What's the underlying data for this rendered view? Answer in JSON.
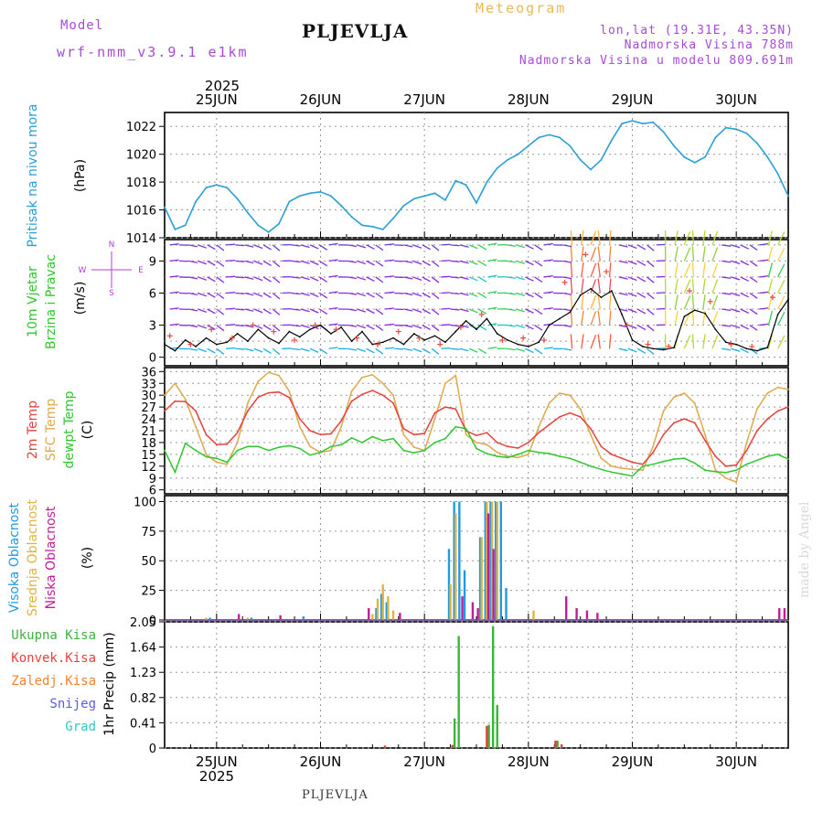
{
  "header": {
    "model_label": "Model",
    "model_name": "wrf-nmm_v3.9.1 e1km",
    "station": "PLJEVLJA",
    "product": "Meteogram",
    "coords": "lon,lat (19.31E, 43.35N)",
    "elevation": "Nadmorska Visina 788m",
    "elevation_model": "Nadmorska Visina u modelu 809.691m"
  },
  "footer": {
    "station": "PLJEVLJA",
    "credit": "made by Angel"
  },
  "colors": {
    "pressure": "#2a9fd6",
    "temp2m": "#e6423c",
    "sfc": "#e0a84a",
    "dew": "#2ec82e",
    "high_cloud": "#1e9be6",
    "mid_cloud": "#e0b43c",
    "low_cloud": "#c01e96",
    "total_precip": "#3cb43c",
    "conv_precip": "#e6423c",
    "frz_precip": "#f08232",
    "snow": "#5a5ae6",
    "grad": "#32c8c8",
    "wind_label": "#32c832",
    "wind_axis": "#b43cdc",
    "frame": "#000000",
    "grid": "#999999"
  },
  "chart_data": [
    {
      "type": "line",
      "panel": "pressure",
      "ylabel_left": "Pritisak na nivou mora",
      "ylabel_unit": "(hPa)",
      "x_unit": "days since 2025-06-24 00Z",
      "ylim": [
        1014,
        1023
      ],
      "yticks": [
        1014,
        1016,
        1018,
        1020,
        1022
      ],
      "top_axis": {
        "year": "2025",
        "labels": [
          "25JUN",
          "26JUN",
          "27JUN",
          "28JUN",
          "29JUN",
          "30JUN"
        ]
      },
      "series": [
        {
          "name": "Pritisak",
          "x": [
            0.5,
            0.6,
            0.7,
            0.8,
            0.9,
            1.0,
            1.1,
            1.2,
            1.3,
            1.4,
            1.5,
            1.6,
            1.7,
            1.8,
            1.9,
            2.0,
            2.1,
            2.2,
            2.3,
            2.4,
            2.5,
            2.6,
            2.7,
            2.8,
            2.9,
            3.0,
            3.1,
            3.2,
            3.3,
            3.4,
            3.5,
            3.6,
            3.7,
            3.8,
            3.9,
            4.0,
            4.1,
            4.2,
            4.3,
            4.4,
            4.5,
            4.6,
            4.7,
            4.8,
            4.9,
            5.0,
            5.1,
            5.2,
            5.3,
            5.4,
            5.5,
            5.6,
            5.7,
            5.8,
            5.9,
            6.0,
            6.1,
            6.2,
            6.3,
            6.4,
            6.5
          ],
          "values": [
            1016.2,
            1014.6,
            1014.9,
            1016.6,
            1017.6,
            1017.8,
            1017.6,
            1016.8,
            1015.8,
            1014.9,
            1014.4,
            1015.0,
            1016.6,
            1017.0,
            1017.2,
            1017.3,
            1017.0,
            1016.3,
            1015.5,
            1014.9,
            1014.8,
            1014.6,
            1015.4,
            1016.3,
            1016.8,
            1017.0,
            1017.2,
            1016.7,
            1018.1,
            1017.8,
            1016.5,
            1018.0,
            1019.0,
            1019.6,
            1020.0,
            1020.6,
            1021.2,
            1021.4,
            1021.2,
            1020.6,
            1019.6,
            1018.9,
            1019.6,
            1021.0,
            1022.2,
            1022.4,
            1022.2,
            1022.3,
            1021.6,
            1020.6,
            1019.8,
            1019.4,
            1019.8,
            1021.2,
            1021.9,
            1021.8,
            1021.5,
            1020.8,
            1019.8,
            1018.6,
            1017.0
          ]
        }
      ]
    },
    {
      "type": "line",
      "panel": "wind",
      "ylabel_left": [
        "10m Vjetar",
        "Brzina i Pravac"
      ],
      "ylabel_unit": "(m/s)",
      "compass": [
        "N",
        "S",
        "W",
        "E"
      ],
      "ylim": [
        -0.8,
        11
      ],
      "yticks": [
        0,
        3,
        6,
        9
      ],
      "grid_levels": [
        0,
        1.5,
        3,
        4.5,
        6,
        7.5,
        9,
        10.5
      ],
      "series": [
        {
          "name": "Brzina",
          "x": [
            0.5,
            0.6,
            0.7,
            0.8,
            0.9,
            1.0,
            1.1,
            1.2,
            1.3,
            1.4,
            1.5,
            1.6,
            1.7,
            1.8,
            1.9,
            2.0,
            2.1,
            2.2,
            2.3,
            2.4,
            2.5,
            2.6,
            2.7,
            2.8,
            2.9,
            3.0,
            3.1,
            3.2,
            3.3,
            3.4,
            3.5,
            3.6,
            3.7,
            3.8,
            3.9,
            4.0,
            4.1,
            4.2,
            4.3,
            4.4,
            4.5,
            4.6,
            4.7,
            4.8,
            4.9,
            5.0,
            5.1,
            5.2,
            5.3,
            5.4,
            5.5,
            5.6,
            5.7,
            5.8,
            5.9,
            6.0,
            6.1,
            6.2,
            6.3,
            6.4,
            6.5
          ],
          "values": [
            1.2,
            0.6,
            1.6,
            1.0,
            1.8,
            1.2,
            1.4,
            2.2,
            1.5,
            2.6,
            1.8,
            1.3,
            2.4,
            1.9,
            2.6,
            3.0,
            2.2,
            2.8,
            1.5,
            2.4,
            1.2,
            1.4,
            1.8,
            1.2,
            2.2,
            1.6,
            2.0,
            1.4,
            2.4,
            3.4,
            2.6,
            3.6,
            2.2,
            1.6,
            1.2,
            1.0,
            1.4,
            3.0,
            3.6,
            4.2,
            5.8,
            6.4,
            5.6,
            6.2,
            4.0,
            1.6,
            1.0,
            0.8,
            0.7,
            0.9,
            3.8,
            4.4,
            4.1,
            2.6,
            1.4,
            1.2,
            0.8,
            0.6,
            0.9,
            4.0,
            5.4
          ]
        },
        {
          "name": "Udari",
          "x": [
            0.55,
            0.75,
            0.95,
            1.15,
            1.35,
            1.55,
            1.75,
            1.95,
            2.15,
            2.35,
            2.55,
            2.75,
            2.95,
            3.15,
            3.35,
            3.55,
            3.75,
            3.95,
            4.15,
            4.35,
            4.55,
            4.75,
            4.95,
            5.15,
            5.35,
            5.55,
            5.75,
            5.95,
            6.15,
            6.35
          ],
          "values": [
            2.0,
            1.2,
            2.6,
            1.8,
            3.0,
            2.4,
            1.6,
            3.0,
            2.6,
            1.8,
            1.2,
            2.4,
            1.8,
            1.2,
            2.8,
            4.0,
            1.6,
            1.8,
            1.6,
            7.0,
            9.6,
            8.0,
            3.0,
            1.2,
            1.0,
            6.2,
            5.2,
            1.2,
            1.0,
            5.6
          ]
        }
      ]
    },
    {
      "type": "line",
      "panel": "temperature",
      "ylabel_left": [
        "2m Temp",
        "SFC Temp",
        "dewpt Temp"
      ],
      "ylabel_unit": "(C)",
      "ylim": [
        5,
        37
      ],
      "yticks": [
        6,
        9,
        12,
        15,
        18,
        21,
        24,
        27,
        30,
        33,
        36
      ],
      "series": [
        {
          "name": "2m Temp",
          "x": [
            0.5,
            0.6,
            0.7,
            0.8,
            0.9,
            1.0,
            1.1,
            1.2,
            1.3,
            1.4,
            1.5,
            1.6,
            1.7,
            1.8,
            1.9,
            2.0,
            2.1,
            2.2,
            2.3,
            2.4,
            2.5,
            2.6,
            2.7,
            2.8,
            2.9,
            3.0,
            3.1,
            3.2,
            3.3,
            3.4,
            3.5,
            3.6,
            3.7,
            3.8,
            3.9,
            4.0,
            4.1,
            4.2,
            4.3,
            4.4,
            4.5,
            4.6,
            4.7,
            4.8,
            4.9,
            5.0,
            5.1,
            5.2,
            5.3,
            5.4,
            5.5,
            5.6,
            5.7,
            5.8,
            5.9,
            6.0,
            6.1,
            6.2,
            6.3,
            6.4,
            6.5
          ],
          "values": [
            26,
            28.5,
            28.4,
            26,
            20,
            17.5,
            17.6,
            20.5,
            26,
            29.5,
            30.6,
            30.8,
            29.4,
            24,
            21,
            20,
            20.2,
            23.5,
            28.5,
            30.2,
            31.2,
            30,
            28,
            21.5,
            20,
            20.3,
            25.5,
            27,
            26.5,
            21,
            19.8,
            20.5,
            18,
            17,
            16.6,
            18,
            20.5,
            22.5,
            24.5,
            25.5,
            24.5,
            21.5,
            17,
            15,
            14,
            13,
            12.5,
            15.5,
            20,
            23,
            24,
            23,
            18.5,
            14.5,
            12,
            12.3,
            16,
            21,
            24,
            26,
            27
          ]
        },
        {
          "name": "SFC Temp",
          "x": [
            0.5,
            0.6,
            0.7,
            0.8,
            0.9,
            1.0,
            1.1,
            1.2,
            1.3,
            1.4,
            1.5,
            1.6,
            1.7,
            1.8,
            1.9,
            2.0,
            2.1,
            2.2,
            2.3,
            2.4,
            2.5,
            2.6,
            2.7,
            2.8,
            2.9,
            3.0,
            3.1,
            3.2,
            3.3,
            3.4,
            3.5,
            3.6,
            3.7,
            3.8,
            3.9,
            4.0,
            4.1,
            4.2,
            4.3,
            4.4,
            4.5,
            4.6,
            4.7,
            4.8,
            4.9,
            5.0,
            5.1,
            5.2,
            5.3,
            5.4,
            5.5,
            5.6,
            5.7,
            5.8,
            5.9,
            6.0,
            6.1,
            6.2,
            6.3,
            6.4,
            6.5
          ],
          "values": [
            30,
            33,
            29,
            22,
            15,
            13,
            12.5,
            18,
            28,
            33.5,
            35.8,
            35,
            31,
            22,
            17,
            15.5,
            16,
            22,
            31,
            34.5,
            35.2,
            33,
            30,
            20,
            16.8,
            16,
            24,
            33,
            35,
            20,
            18,
            17.5,
            15.5,
            14.5,
            14.2,
            15,
            22,
            28,
            30.5,
            30,
            26.5,
            20,
            14,
            12,
            11.5,
            11.2,
            11,
            17,
            26,
            29.5,
            30.5,
            28,
            20,
            11,
            9,
            8,
            18,
            26.5,
            30.5,
            32,
            31.5
          ]
        },
        {
          "name": "dewpt Temp",
          "x": [
            0.5,
            0.6,
            0.7,
            0.8,
            0.9,
            1.0,
            1.1,
            1.2,
            1.3,
            1.4,
            1.5,
            1.6,
            1.7,
            1.8,
            1.9,
            2.0,
            2.1,
            2.2,
            2.3,
            2.4,
            2.5,
            2.6,
            2.7,
            2.8,
            2.9,
            3.0,
            3.1,
            3.2,
            3.3,
            3.4,
            3.5,
            3.6,
            3.7,
            3.8,
            3.9,
            4.0,
            4.1,
            4.2,
            4.3,
            4.4,
            4.5,
            4.6,
            4.7,
            4.8,
            4.9,
            5.0,
            5.1,
            5.2,
            5.3,
            5.4,
            5.5,
            5.6,
            5.7,
            5.8,
            5.9,
            6.0,
            6.1,
            6.2,
            6.3,
            6.4,
            6.5
          ],
          "values": [
            16,
            10.5,
            17.8,
            16,
            14.4,
            14,
            13,
            16,
            17,
            17,
            16,
            16.8,
            17.2,
            16.5,
            14.8,
            15.5,
            17,
            17.4,
            19.2,
            18,
            19.5,
            18.5,
            19,
            16,
            15.4,
            16,
            18,
            19,
            22,
            21.5,
            16.5,
            15.2,
            14.5,
            14.2,
            15,
            16,
            15.5,
            15.2,
            14.5,
            14,
            13,
            12,
            11.2,
            10.5,
            10,
            9.5,
            12,
            12.5,
            13.2,
            13.8,
            14,
            12.8,
            11,
            10.6,
            10.4,
            11,
            12.5,
            13.5,
            14.5,
            15,
            13.8
          ]
        }
      ]
    },
    {
      "type": "bar",
      "panel": "cloud",
      "ylabel_left": [
        "Visoka Oblacnost",
        "Srednja Oblacnost",
        "Niska Oblacnost"
      ],
      "ylabel_unit": "(%)",
      "ylim": [
        0,
        105
      ],
      "yticks": [
        0,
        25,
        50,
        75,
        100
      ],
      "series": [
        {
          "name": "Visoka Oblacnost",
          "x": [
            0.95,
            1.35,
            1.85,
            2.55,
            2.6,
            2.65,
            3.25,
            3.3,
            3.35,
            3.4,
            3.55,
            3.6,
            3.65,
            3.7,
            3.75,
            3.8
          ],
          "values": [
            2,
            2,
            3,
            10,
            22,
            15,
            60,
            100,
            100,
            42,
            70,
            100,
            100,
            100,
            100,
            27
          ]
        },
        {
          "name": "Srednja Oblacnost",
          "x": [
            0.9,
            1.3,
            2.5,
            2.55,
            2.6,
            2.65,
            2.7,
            3.25,
            3.3,
            3.55,
            3.6,
            3.65,
            3.7,
            4.05
          ],
          "values": [
            2,
            2,
            5,
            18,
            30,
            20,
            8,
            30,
            90,
            70,
            100,
            100,
            100,
            8
          ]
        },
        {
          "name": "Niska Oblacnost",
          "x": [
            1.2,
            1.6,
            2.45,
            2.75,
            3.35,
            3.45,
            3.5,
            3.6,
            3.65,
            4.35,
            4.45,
            4.55,
            4.65,
            6.4,
            6.45
          ],
          "values": [
            5,
            4,
            10,
            6,
            20,
            15,
            10,
            90,
            60,
            20,
            10,
            8,
            6,
            10,
            10
          ]
        }
      ]
    },
    {
      "type": "bar",
      "panel": "precipitation",
      "ylabel_left": [
        "Ukupna Kisa",
        "Konvek.Kisa",
        "Zaledj.Kisa",
        "Snijeg",
        "Grad"
      ],
      "ylabel_unit": "1hr Precip (mm)",
      "ylim": [
        0,
        2.05
      ],
      "yticks": [
        0,
        0.41,
        0.82,
        1.23,
        1.64,
        2.05
      ],
      "bottom_axis": {
        "year": "2025",
        "labels": [
          "25JUN",
          "26JUN",
          "27JUN",
          "28JUN",
          "29JUN",
          "30JUN"
        ]
      },
      "series": [
        {
          "name": "Ukupna Kisa",
          "x": [
            3.29,
            3.33,
            3.62,
            3.66,
            3.7,
            4.28
          ],
          "values": [
            0.48,
            1.82,
            0.38,
            1.98,
            0.7,
            0.12
          ]
        },
        {
          "name": "Konvek.Kisa",
          "x": [
            2.62,
            3.27,
            3.6,
            4.26,
            4.32
          ],
          "values": [
            0.04,
            0.05,
            0.36,
            0.12,
            0.06
          ]
        }
      ]
    }
  ]
}
